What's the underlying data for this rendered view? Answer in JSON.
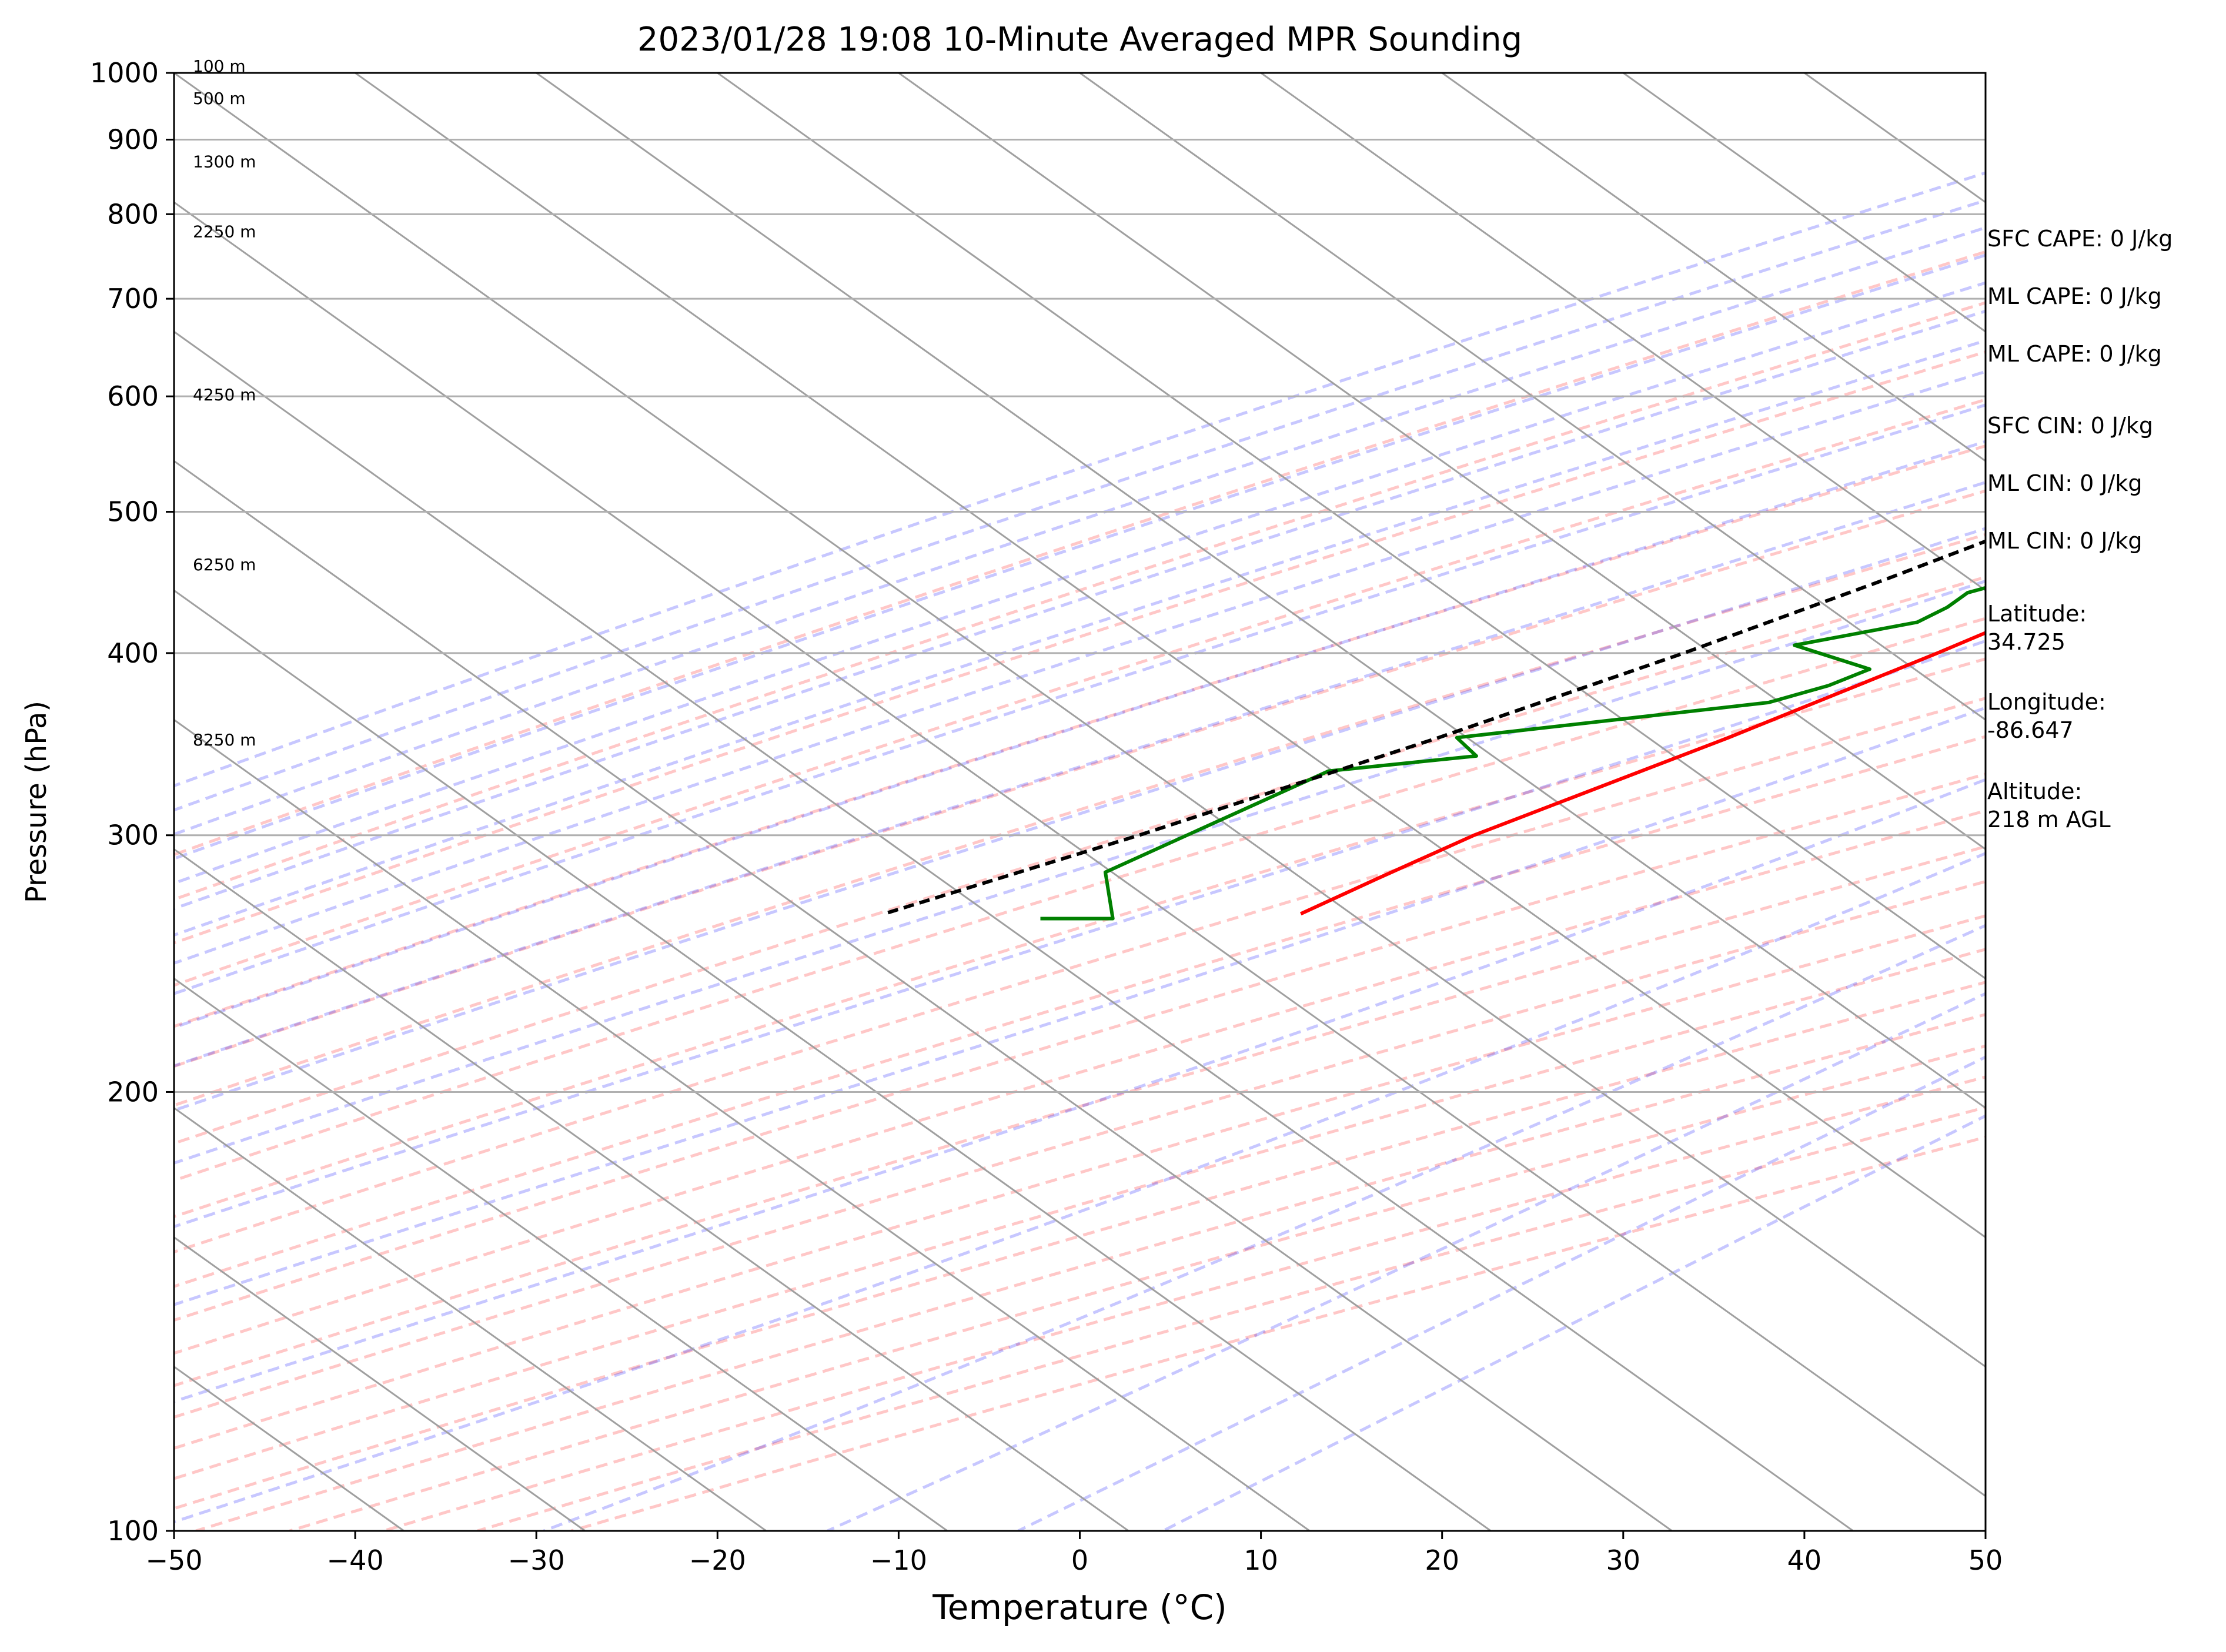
{
  "chart_data": {
    "type": "line",
    "title": "2023/01/28 19:08 10-Minute Averaged MPR Sounding",
    "xlabel": "Temperature (°C)",
    "ylabel": "Pressure (hPa)",
    "xlim": [
      -50,
      50
    ],
    "ylim": [
      1000,
      100
    ],
    "y_scale": "log",
    "grid": true,
    "x_ticks": [
      "−50",
      "−40",
      "−30",
      "−20",
      "−10",
      "0",
      "10",
      "20",
      "30",
      "40",
      "50"
    ],
    "y_ticks": [
      "100",
      "200",
      "300",
      "400",
      "500",
      "600",
      "700",
      "800",
      "900",
      "1000"
    ],
    "height_labels": [
      {
        "p": 1000,
        "label": "100 m"
      },
      {
        "p": 950,
        "label": "500 m"
      },
      {
        "p": 860,
        "label": "1300 m"
      },
      {
        "p": 770,
        "label": "2250 m"
      },
      {
        "p": 595,
        "label": "4250 m"
      },
      {
        "p": 455,
        "label": "6250 m"
      },
      {
        "p": 345,
        "label": "8250 m"
      }
    ],
    "series": [
      {
        "color": "#ff0000",
        "points": [
          [
            1000,
            14.0
          ],
          [
            992,
            13.5
          ],
          [
            980,
            12.0
          ],
          [
            960,
            8.0
          ],
          [
            940,
            4.0
          ],
          [
            920,
            1.5
          ],
          [
            900,
            0.0
          ],
          [
            880,
            -0.5
          ],
          [
            860,
            -0.5
          ],
          [
            840,
            -0.5
          ],
          [
            820,
            -0.5
          ],
          [
            800,
            -0.5
          ],
          [
            760,
            -1.5
          ],
          [
            700,
            -3.5
          ],
          [
            660,
            -4.0
          ],
          [
            620,
            -5.5
          ],
          [
            580,
            -8.0
          ],
          [
            550,
            -9.5
          ],
          [
            520,
            -11.0
          ],
          [
            500,
            -12.5
          ],
          [
            450,
            -16.5
          ],
          [
            400,
            -20.5
          ],
          [
            350,
            -25.5
          ],
          [
            300,
            -32.0
          ],
          [
            280,
            -34.0
          ],
          [
            265,
            -35.5
          ]
        ]
      },
      {
        "color": "#008000",
        "points": [
          [
            1000,
            -7.5
          ],
          [
            995,
            -11.5
          ],
          [
            985,
            -13.0
          ],
          [
            975,
            -14.5
          ],
          [
            965,
            -14.0
          ],
          [
            950,
            -13.0
          ],
          [
            930,
            -11.0
          ],
          [
            910,
            -12.0
          ],
          [
            885,
            -13.5
          ],
          [
            860,
            -13.5
          ],
          [
            840,
            -13.0
          ],
          [
            830,
            -15.0
          ],
          [
            815,
            -14.5
          ],
          [
            805,
            -15.5
          ],
          [
            790,
            -15.0
          ],
          [
            760,
            -15.5
          ],
          [
            740,
            -15.5
          ],
          [
            720,
            -14.5
          ],
          [
            700,
            -15.0
          ],
          [
            680,
            -15.0
          ],
          [
            660,
            -13.5
          ],
          [
            640,
            -13.0
          ],
          [
            620,
            -12.0
          ],
          [
            600,
            -11.5
          ],
          [
            585,
            -11.0
          ],
          [
            570,
            -10.0
          ],
          [
            555,
            -9.5
          ],
          [
            540,
            -10.5
          ],
          [
            520,
            -11.0
          ],
          [
            500,
            -11.5
          ],
          [
            480,
            -19.5
          ],
          [
            460,
            -20.0
          ],
          [
            440,
            -23.5
          ],
          [
            430,
            -23.5
          ],
          [
            420,
            -24.0
          ],
          [
            405,
            -29.0
          ],
          [
            390,
            -23.0
          ],
          [
            380,
            -24.0
          ],
          [
            370,
            -26.0
          ],
          [
            350,
            -40.5
          ],
          [
            340,
            -38.0
          ],
          [
            332,
            -45.0
          ],
          [
            283,
            -49.5
          ],
          [
            263,
            -45.5
          ],
          [
            263,
            -49.5
          ]
        ]
      },
      {
        "color": "#000000",
        "dash": "dashed",
        "points": [
          [
            1000,
            15.5
          ],
          [
            980,
            13.0
          ],
          [
            960,
            10.5
          ],
          [
            940,
            8.0
          ],
          [
            920,
            5.5
          ],
          [
            900,
            3.0
          ],
          [
            880,
            0.5
          ],
          [
            860,
            -2.0
          ],
          [
            840,
            -4.5
          ],
          [
            820,
            -7.0
          ],
          [
            800,
            -9.0
          ],
          [
            780,
            -11.0
          ],
          [
            760,
            -13.0
          ],
          [
            740,
            -15.0
          ],
          [
            720,
            -16.0
          ],
          [
            700,
            -16.0
          ],
          [
            680,
            -16.0
          ],
          [
            660,
            -16.5
          ],
          [
            640,
            -17.0
          ],
          [
            620,
            -17.5
          ],
          [
            600,
            -18.0
          ],
          [
            550,
            -20.5
          ],
          [
            500,
            -24.5
          ],
          [
            450,
            -29.0
          ],
          [
            400,
            -34.5
          ],
          [
            350,
            -41.5
          ],
          [
            300,
            -50.5
          ],
          [
            265,
            -58.5
          ]
        ]
      }
    ],
    "annotations": [
      "SFC CAPE: 0 J/kg",
      "ML CAPE: 0 J/kg",
      "ML CAPE: 0 J/kg",
      "SFC CIN: 0 J/kg",
      "ML CIN: 0 J/kg",
      "ML CIN: 0 J/kg",
      "Latitude:\n34.725",
      "Longitude:\n-86.647",
      "Altitude:\n218 m AGL"
    ]
  }
}
